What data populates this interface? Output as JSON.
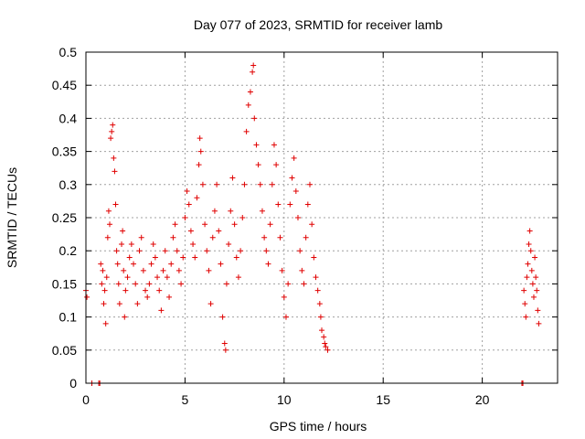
{
  "chart_data": {
    "type": "scatter",
    "title": "Day 077 of 2023, SRMTID for receiver lamb",
    "xlabel": "GPS time / hours",
    "ylabel": "SRMTID / TECUs",
    "xlim": [
      0,
      23.8
    ],
    "ylim": [
      0,
      0.5
    ],
    "xticks": [
      "0",
      "5",
      "10",
      "15",
      "20"
    ],
    "yticks": [
      "0",
      "0.05",
      "0.1",
      "0.15",
      "0.2",
      "0.25",
      "0.3",
      "0.35",
      "0.4",
      "0.45",
      "0.5"
    ],
    "grid": true,
    "marker": "+",
    "series": [
      {
        "name": "SRMTID",
        "color": "#e00000",
        "points": [
          [
            0.0,
            0.14
          ],
          [
            0.05,
            0.13
          ],
          [
            0.3,
            0.0
          ],
          [
            0.65,
            0.0
          ],
          [
            0.7,
            0.0
          ],
          [
            0.75,
            0.18
          ],
          [
            0.8,
            0.15
          ],
          [
            0.85,
            0.17
          ],
          [
            0.9,
            0.12
          ],
          [
            0.95,
            0.14
          ],
          [
            1.0,
            0.09
          ],
          [
            1.05,
            0.16
          ],
          [
            1.1,
            0.22
          ],
          [
            1.15,
            0.26
          ],
          [
            1.2,
            0.24
          ],
          [
            1.25,
            0.37
          ],
          [
            1.3,
            0.38
          ],
          [
            1.35,
            0.39
          ],
          [
            1.4,
            0.34
          ],
          [
            1.45,
            0.32
          ],
          [
            1.5,
            0.27
          ],
          [
            1.55,
            0.2
          ],
          [
            1.6,
            0.18
          ],
          [
            1.65,
            0.15
          ],
          [
            1.7,
            0.12
          ],
          [
            1.8,
            0.21
          ],
          [
            1.85,
            0.23
          ],
          [
            1.9,
            0.17
          ],
          [
            1.95,
            0.1
          ],
          [
            2.0,
            0.14
          ],
          [
            2.1,
            0.16
          ],
          [
            2.2,
            0.19
          ],
          [
            2.3,
            0.21
          ],
          [
            2.4,
            0.18
          ],
          [
            2.5,
            0.15
          ],
          [
            2.6,
            0.12
          ],
          [
            2.7,
            0.2
          ],
          [
            2.8,
            0.22
          ],
          [
            2.9,
            0.17
          ],
          [
            3.0,
            0.14
          ],
          [
            3.1,
            0.13
          ],
          [
            3.2,
            0.15
          ],
          [
            3.3,
            0.18
          ],
          [
            3.4,
            0.21
          ],
          [
            3.5,
            0.19
          ],
          [
            3.6,
            0.16
          ],
          [
            3.7,
            0.14
          ],
          [
            3.8,
            0.11
          ],
          [
            3.9,
            0.17
          ],
          [
            4.0,
            0.2
          ],
          [
            4.1,
            0.16
          ],
          [
            4.2,
            0.13
          ],
          [
            4.3,
            0.18
          ],
          [
            4.4,
            0.22
          ],
          [
            4.5,
            0.24
          ],
          [
            4.6,
            0.2
          ],
          [
            4.7,
            0.17
          ],
          [
            4.8,
            0.15
          ],
          [
            4.9,
            0.19
          ],
          [
            5.0,
            0.25
          ],
          [
            5.1,
            0.29
          ],
          [
            5.2,
            0.27
          ],
          [
            5.3,
            0.23
          ],
          [
            5.4,
            0.21
          ],
          [
            5.5,
            0.19
          ],
          [
            5.6,
            0.28
          ],
          [
            5.7,
            0.33
          ],
          [
            5.75,
            0.37
          ],
          [
            5.8,
            0.35
          ],
          [
            5.9,
            0.3
          ],
          [
            6.0,
            0.24
          ],
          [
            6.1,
            0.2
          ],
          [
            6.2,
            0.17
          ],
          [
            6.3,
            0.12
          ],
          [
            6.4,
            0.22
          ],
          [
            6.5,
            0.26
          ],
          [
            6.6,
            0.3
          ],
          [
            6.7,
            0.23
          ],
          [
            6.8,
            0.18
          ],
          [
            6.9,
            0.1
          ],
          [
            7.0,
            0.06
          ],
          [
            7.05,
            0.05
          ],
          [
            7.1,
            0.15
          ],
          [
            7.2,
            0.21
          ],
          [
            7.3,
            0.26
          ],
          [
            7.4,
            0.31
          ],
          [
            7.5,
            0.24
          ],
          [
            7.6,
            0.19
          ],
          [
            7.7,
            0.16
          ],
          [
            7.8,
            0.2
          ],
          [
            7.9,
            0.25
          ],
          [
            8.0,
            0.3
          ],
          [
            8.1,
            0.38
          ],
          [
            8.2,
            0.42
          ],
          [
            8.3,
            0.44
          ],
          [
            8.4,
            0.47
          ],
          [
            8.45,
            0.48
          ],
          [
            8.5,
            0.4
          ],
          [
            8.6,
            0.36
          ],
          [
            8.7,
            0.33
          ],
          [
            8.8,
            0.3
          ],
          [
            8.9,
            0.26
          ],
          [
            9.0,
            0.22
          ],
          [
            9.1,
            0.2
          ],
          [
            9.2,
            0.18
          ],
          [
            9.3,
            0.24
          ],
          [
            9.4,
            0.3
          ],
          [
            9.5,
            0.36
          ],
          [
            9.6,
            0.33
          ],
          [
            9.7,
            0.27
          ],
          [
            9.8,
            0.22
          ],
          [
            9.9,
            0.17
          ],
          [
            10.0,
            0.13
          ],
          [
            10.1,
            0.1
          ],
          [
            10.2,
            0.15
          ],
          [
            10.3,
            0.27
          ],
          [
            10.4,
            0.31
          ],
          [
            10.5,
            0.34
          ],
          [
            10.6,
            0.29
          ],
          [
            10.7,
            0.25
          ],
          [
            10.8,
            0.2
          ],
          [
            10.9,
            0.17
          ],
          [
            11.0,
            0.15
          ],
          [
            11.1,
            0.22
          ],
          [
            11.2,
            0.27
          ],
          [
            11.3,
            0.3
          ],
          [
            11.4,
            0.24
          ],
          [
            11.5,
            0.19
          ],
          [
            11.6,
            0.16
          ],
          [
            11.7,
            0.14
          ],
          [
            11.8,
            0.12
          ],
          [
            11.85,
            0.1
          ],
          [
            11.9,
            0.08
          ],
          [
            12.0,
            0.07
          ],
          [
            12.05,
            0.06
          ],
          [
            12.1,
            0.055
          ],
          [
            12.2,
            0.05
          ],
          [
            22.0,
            0.0
          ],
          [
            22.05,
            0.0
          ],
          [
            22.1,
            0.14
          ],
          [
            22.15,
            0.12
          ],
          [
            22.2,
            0.1
          ],
          [
            22.25,
            0.16
          ],
          [
            22.3,
            0.18
          ],
          [
            22.35,
            0.21
          ],
          [
            22.4,
            0.23
          ],
          [
            22.45,
            0.2
          ],
          [
            22.5,
            0.17
          ],
          [
            22.55,
            0.15
          ],
          [
            22.6,
            0.13
          ],
          [
            22.65,
            0.19
          ],
          [
            22.7,
            0.16
          ],
          [
            22.75,
            0.14
          ],
          [
            22.8,
            0.11
          ],
          [
            22.85,
            0.09
          ]
        ]
      }
    ]
  }
}
